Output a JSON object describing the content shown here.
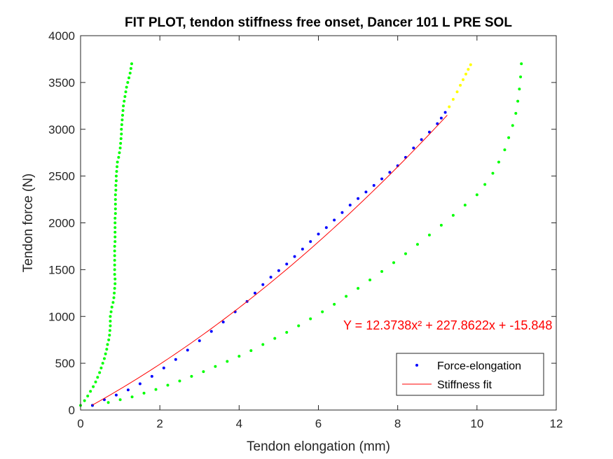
{
  "chart_data": {
    "type": "scatter",
    "title": "FIT PLOT, tendon stiffness free onset, Dancer 101 L PRE SOL",
    "xlabel": "Tendon elongation (mm)",
    "ylabel": "Tendon force (N)",
    "xlim": [
      0,
      12
    ],
    "ylim": [
      0,
      4000
    ],
    "xticks": [
      0,
      2,
      4,
      6,
      8,
      10,
      12
    ],
    "yticks": [
      0,
      500,
      1000,
      1500,
      2000,
      2500,
      3000,
      3500,
      4000
    ],
    "xtick_labels": [
      "0",
      "2",
      "4",
      "6",
      "8",
      "10",
      "12"
    ],
    "ytick_labels": [
      "0",
      "500",
      "1000",
      "1500",
      "2000",
      "2500",
      "3000",
      "3500",
      "4000"
    ],
    "grid": false,
    "legend_position": "bottom-right",
    "equation_label": "Y = 12.3738x² + 227.8622x + -15.848",
    "colors": {
      "blue_points": "#0000ff",
      "green_points": "#00ff00",
      "yellow_points": "#ffff00",
      "fit_line": "#ff0000"
    },
    "legend": [
      {
        "label": "Force-elongation",
        "kind": "marker",
        "color": "#0000ff"
      },
      {
        "label": "Stiffness fit",
        "kind": "line",
        "color": "#ff0000"
      }
    ],
    "series": [
      {
        "kind": "green-left-branch",
        "color": "#00ff00",
        "points": [
          [
            0.0,
            50
          ],
          [
            0.1,
            100
          ],
          [
            0.18,
            150
          ],
          [
            0.25,
            200
          ],
          [
            0.32,
            250
          ],
          [
            0.38,
            300
          ],
          [
            0.43,
            350
          ],
          [
            0.48,
            400
          ],
          [
            0.52,
            450
          ],
          [
            0.56,
            500
          ],
          [
            0.6,
            550
          ],
          [
            0.63,
            600
          ],
          [
            0.66,
            650
          ],
          [
            0.68,
            700
          ],
          [
            0.71,
            750
          ],
          [
            0.73,
            800
          ],
          [
            0.74,
            850
          ],
          [
            0.75,
            900
          ],
          [
            0.75,
            950
          ],
          [
            0.75,
            1000
          ],
          [
            0.77,
            1050
          ],
          [
            0.79,
            1100
          ],
          [
            0.82,
            1150
          ],
          [
            0.84,
            1200
          ],
          [
            0.85,
            1250
          ],
          [
            0.86,
            1300
          ],
          [
            0.87,
            1350
          ],
          [
            0.87,
            1400
          ],
          [
            0.86,
            1450
          ],
          [
            0.86,
            1500
          ],
          [
            0.86,
            1550
          ],
          [
            0.86,
            1600
          ],
          [
            0.86,
            1650
          ],
          [
            0.86,
            1700
          ],
          [
            0.86,
            1750
          ],
          [
            0.87,
            1800
          ],
          [
            0.87,
            1850
          ],
          [
            0.87,
            1900
          ],
          [
            0.87,
            1950
          ],
          [
            0.87,
            2000
          ],
          [
            0.87,
            2050
          ],
          [
            0.88,
            2100
          ],
          [
            0.88,
            2150
          ],
          [
            0.88,
            2200
          ],
          [
            0.88,
            2250
          ],
          [
            0.88,
            2300
          ],
          [
            0.89,
            2350
          ],
          [
            0.89,
            2400
          ],
          [
            0.9,
            2450
          ],
          [
            0.9,
            2500
          ],
          [
            0.91,
            2550
          ],
          [
            0.92,
            2600
          ],
          [
            0.93,
            2650
          ],
          [
            0.96,
            2700
          ],
          [
            0.98,
            2750
          ],
          [
            1.0,
            2800
          ],
          [
            1.01,
            2850
          ],
          [
            1.02,
            2900
          ],
          [
            1.03,
            2950
          ],
          [
            1.03,
            3000
          ],
          [
            1.04,
            3050
          ],
          [
            1.05,
            3100
          ],
          [
            1.06,
            3150
          ],
          [
            1.07,
            3200
          ],
          [
            1.08,
            3250
          ],
          [
            1.1,
            3300
          ],
          [
            1.12,
            3350
          ],
          [
            1.14,
            3400
          ],
          [
            1.16,
            3450
          ],
          [
            1.19,
            3500
          ],
          [
            1.22,
            3550
          ],
          [
            1.25,
            3600
          ],
          [
            1.27,
            3650
          ],
          [
            1.29,
            3700
          ]
        ]
      },
      {
        "kind": "green-right-branch",
        "color": "#00ff00",
        "points": [
          [
            0.3,
            50
          ],
          [
            0.7,
            80
          ],
          [
            1.0,
            110
          ],
          [
            1.3,
            140
          ],
          [
            1.6,
            180
          ],
          [
            1.9,
            220
          ],
          [
            2.2,
            265
          ],
          [
            2.5,
            310
          ],
          [
            2.8,
            360
          ],
          [
            3.1,
            410
          ],
          [
            3.4,
            465
          ],
          [
            3.7,
            520
          ],
          [
            4.0,
            575
          ],
          [
            4.3,
            635
          ],
          [
            4.6,
            700
          ],
          [
            4.9,
            765
          ],
          [
            5.2,
            830
          ],
          [
            5.5,
            900
          ],
          [
            5.8,
            975
          ],
          [
            6.1,
            1050
          ],
          [
            6.4,
            1130
          ],
          [
            6.7,
            1215
          ],
          [
            7.0,
            1300
          ],
          [
            7.3,
            1390
          ],
          [
            7.6,
            1480
          ],
          [
            7.9,
            1575
          ],
          [
            8.2,
            1670
          ],
          [
            8.5,
            1770
          ],
          [
            8.8,
            1870
          ],
          [
            9.1,
            1975
          ],
          [
            9.4,
            2080
          ],
          [
            9.7,
            2190
          ],
          [
            10.0,
            2300
          ],
          [
            10.2,
            2410
          ],
          [
            10.4,
            2530
          ],
          [
            10.55,
            2650
          ],
          [
            10.7,
            2780
          ],
          [
            10.8,
            2910
          ],
          [
            10.9,
            3040
          ],
          [
            10.98,
            3170
          ],
          [
            11.03,
            3300
          ],
          [
            11.07,
            3430
          ],
          [
            11.1,
            3560
          ],
          [
            11.12,
            3700
          ]
        ]
      },
      {
        "kind": "blue-force-elongation",
        "color": "#0000ff",
        "points": [
          [
            0.3,
            50
          ],
          [
            0.6,
            110
          ],
          [
            0.9,
            160
          ],
          [
            1.2,
            215
          ],
          [
            1.5,
            280
          ],
          [
            1.8,
            360
          ],
          [
            2.1,
            450
          ],
          [
            2.4,
            540
          ],
          [
            2.7,
            640
          ],
          [
            3.0,
            740
          ],
          [
            3.3,
            840
          ],
          [
            3.6,
            940
          ],
          [
            3.9,
            1050
          ],
          [
            4.2,
            1160
          ],
          [
            4.4,
            1250
          ],
          [
            4.6,
            1340
          ],
          [
            4.8,
            1420
          ],
          [
            5.0,
            1490
          ],
          [
            5.2,
            1560
          ],
          [
            5.4,
            1640
          ],
          [
            5.6,
            1720
          ],
          [
            5.8,
            1800
          ],
          [
            6.0,
            1880
          ],
          [
            6.2,
            1950
          ],
          [
            6.4,
            2030
          ],
          [
            6.6,
            2110
          ],
          [
            6.8,
            2190
          ],
          [
            7.0,
            2260
          ],
          [
            7.2,
            2330
          ],
          [
            7.4,
            2400
          ],
          [
            7.6,
            2470
          ],
          [
            7.8,
            2540
          ],
          [
            8.0,
            2610
          ],
          [
            8.2,
            2700
          ],
          [
            8.4,
            2800
          ],
          [
            8.6,
            2890
          ],
          [
            8.8,
            2970
          ],
          [
            9.0,
            3060
          ],
          [
            9.1,
            3120
          ],
          [
            9.2,
            3180
          ]
        ]
      },
      {
        "kind": "yellow-points",
        "color": "#ffff00",
        "points": [
          [
            9.3,
            3240
          ],
          [
            9.4,
            3320
          ],
          [
            9.5,
            3400
          ],
          [
            9.58,
            3470
          ],
          [
            9.65,
            3530
          ],
          [
            9.72,
            3590
          ],
          [
            9.78,
            3640
          ],
          [
            9.84,
            3690
          ]
        ]
      }
    ],
    "fit": {
      "a": 12.3738,
      "b": 227.8622,
      "c": -15.848,
      "x_range": [
        0.3,
        9.25
      ],
      "color": "#ff0000"
    }
  }
}
